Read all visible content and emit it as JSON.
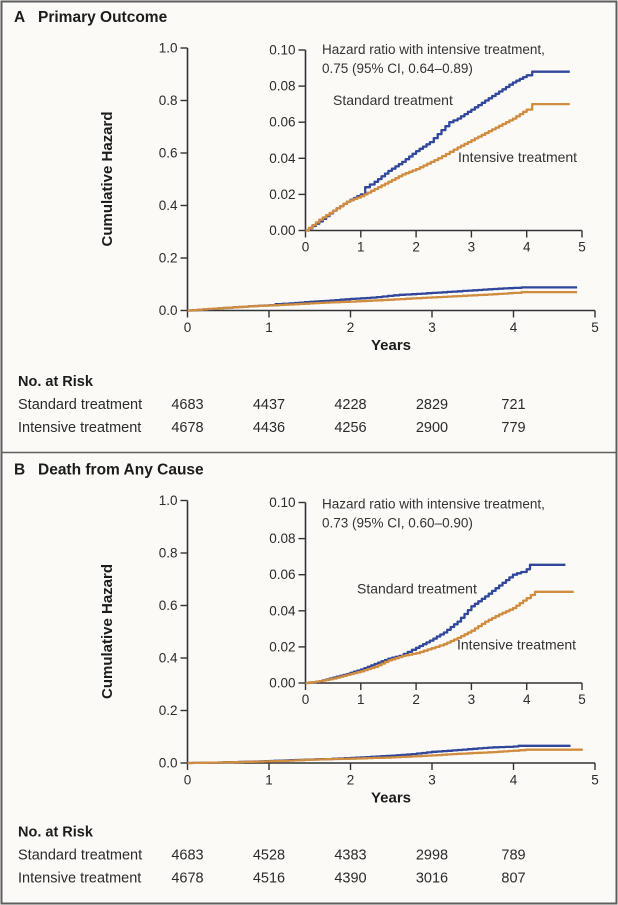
{
  "figure": {
    "background": "#fbfaf7",
    "panels": [
      {
        "label": "A",
        "title": "Primary Outcome",
        "ylabel": "Cumulative Hazard",
        "xlabel": "Years",
        "risk_table": {
          "header": "No. at Risk",
          "rows": [
            {
              "label": "Standard treatment",
              "values": [
                "4683",
                "4437",
                "4228",
                "2829",
                "721"
              ]
            },
            {
              "label": "Intensive treatment",
              "values": [
                "4678",
                "4436",
                "4256",
                "2900",
                "779"
              ]
            }
          ]
        }
      },
      {
        "label": "B",
        "title": "Death from Any Cause",
        "ylabel": "Cumulative Hazard",
        "xlabel": "Years",
        "risk_table": {
          "header": "No. at Risk",
          "rows": [
            {
              "label": "Standard treatment",
              "values": [
                "4683",
                "4528",
                "4383",
                "2998",
                "789"
              ]
            },
            {
              "label": "Intensive treatment",
              "values": [
                "4678",
                "4516",
                "4390",
                "3016",
                "807"
              ]
            }
          ]
        }
      }
    ]
  },
  "colors": {
    "standard": "#31479b",
    "intensive": "#d08c3f",
    "axis": "#333333"
  },
  "chart_data": [
    {
      "type": "line",
      "panel": "A",
      "title": "Primary Outcome",
      "xlabel": "Years",
      "ylabel": "Cumulative Hazard",
      "xlim": [
        0,
        5
      ],
      "x_ticks": [
        "0",
        "1",
        "2",
        "3",
        "4",
        "5"
      ],
      "main_axis": {
        "ylim": [
          0,
          1.0
        ],
        "y_ticks": [
          "1.0",
          "0.8",
          "0.6",
          "0.4",
          "0.2",
          "0.0"
        ]
      },
      "inset_axis": {
        "ylim": [
          0,
          0.1
        ],
        "y_ticks": [
          "0.10",
          "0.08",
          "0.06",
          "0.04",
          "0.02",
          "0.00"
        ]
      },
      "annotation": {
        "line1": "Hazard ratio with intensive treatment,",
        "line2": "0.75 (95% CI, 0.64–0.89)"
      },
      "series": [
        {
          "name": "Standard treatment",
          "color_key": "standard",
          "points": [
            [
              0,
              0
            ],
            [
              0.25,
              0.005
            ],
            [
              0.5,
              0.011
            ],
            [
              0.75,
              0.016
            ],
            [
              1.0,
              0.02
            ],
            [
              1.08,
              0.024
            ],
            [
              1.25,
              0.027
            ],
            [
              1.5,
              0.033
            ],
            [
              1.75,
              0.038
            ],
            [
              2.0,
              0.044
            ],
            [
              2.25,
              0.049
            ],
            [
              2.6,
              0.06
            ],
            [
              2.75,
              0.062
            ],
            [
              3.0,
              0.067
            ],
            [
              3.25,
              0.072
            ],
            [
              3.5,
              0.077
            ],
            [
              3.75,
              0.082
            ],
            [
              4.0,
              0.086
            ],
            [
              4.1,
              0.088
            ],
            [
              4.78,
              0.088
            ]
          ]
        },
        {
          "name": "Intensive treatment",
          "color_key": "intensive",
          "points": [
            [
              0,
              0
            ],
            [
              0.25,
              0.006
            ],
            [
              0.5,
              0.011
            ],
            [
              0.75,
              0.016
            ],
            [
              1.0,
              0.019
            ],
            [
              1.25,
              0.023
            ],
            [
              1.5,
              0.027
            ],
            [
              1.75,
              0.031
            ],
            [
              2.0,
              0.034
            ],
            [
              2.4,
              0.04
            ],
            [
              2.75,
              0.046
            ],
            [
              3.0,
              0.05
            ],
            [
              3.25,
              0.054
            ],
            [
              3.5,
              0.058
            ],
            [
              3.75,
              0.062
            ],
            [
              4.0,
              0.067
            ],
            [
              4.1,
              0.07
            ],
            [
              4.78,
              0.07
            ]
          ]
        }
      ]
    },
    {
      "type": "line",
      "panel": "B",
      "title": "Death from Any Cause",
      "xlabel": "Years",
      "ylabel": "Cumulative Hazard",
      "xlim": [
        0,
        5
      ],
      "x_ticks": [
        "0",
        "1",
        "2",
        "3",
        "4",
        "5"
      ],
      "main_axis": {
        "ylim": [
          0,
          1.0
        ],
        "y_ticks": [
          "1.0",
          "0.8",
          "0.6",
          "0.4",
          "0.2",
          "0.0"
        ]
      },
      "inset_axis": {
        "ylim": [
          0,
          0.1
        ],
        "y_ticks": [
          "0.10",
          "0.08",
          "0.06",
          "0.04",
          "0.02",
          "0.00"
        ]
      },
      "annotation": {
        "line1": "Hazard ratio with intensive treatment,",
        "line2": "0.73 (95% CI, 0.60–0.90)"
      },
      "series": [
        {
          "name": "Standard treatment",
          "color_key": "standard",
          "points": [
            [
              0,
              0
            ],
            [
              0.25,
              0.001
            ],
            [
              0.5,
              0.003
            ],
            [
              0.75,
              0.005
            ],
            [
              1.0,
              0.0075
            ],
            [
              1.25,
              0.0105
            ],
            [
              1.5,
              0.0135
            ],
            [
              1.7,
              0.015
            ],
            [
              2.0,
              0.0195
            ],
            [
              2.25,
              0.0235
            ],
            [
              2.5,
              0.028
            ],
            [
              2.75,
              0.034
            ],
            [
              3.0,
              0.0425
            ],
            [
              3.25,
              0.048
            ],
            [
              3.5,
              0.054
            ],
            [
              3.75,
              0.06
            ],
            [
              3.9,
              0.0615
            ],
            [
              4.0,
              0.063
            ],
            [
              4.06,
              0.0655
            ],
            [
              4.7,
              0.0655
            ]
          ]
        },
        {
          "name": "Intensive treatment",
          "color_key": "intensive",
          "points": [
            [
              0,
              0
            ],
            [
              0.25,
              0.001
            ],
            [
              0.5,
              0.0025
            ],
            [
              0.75,
              0.0045
            ],
            [
              1.0,
              0.0065
            ],
            [
              1.25,
              0.009
            ],
            [
              1.5,
              0.0125
            ],
            [
              1.75,
              0.015
            ],
            [
              2.0,
              0.0165
            ],
            [
              2.35,
              0.02
            ],
            [
              2.5,
              0.0215
            ],
            [
              2.75,
              0.025
            ],
            [
              3.0,
              0.029
            ],
            [
              3.25,
              0.034
            ],
            [
              3.5,
              0.038
            ],
            [
              3.75,
              0.0415
            ],
            [
              4.0,
              0.047
            ],
            [
              4.15,
              0.0505
            ],
            [
              4.85,
              0.0505
            ]
          ]
        }
      ]
    }
  ]
}
